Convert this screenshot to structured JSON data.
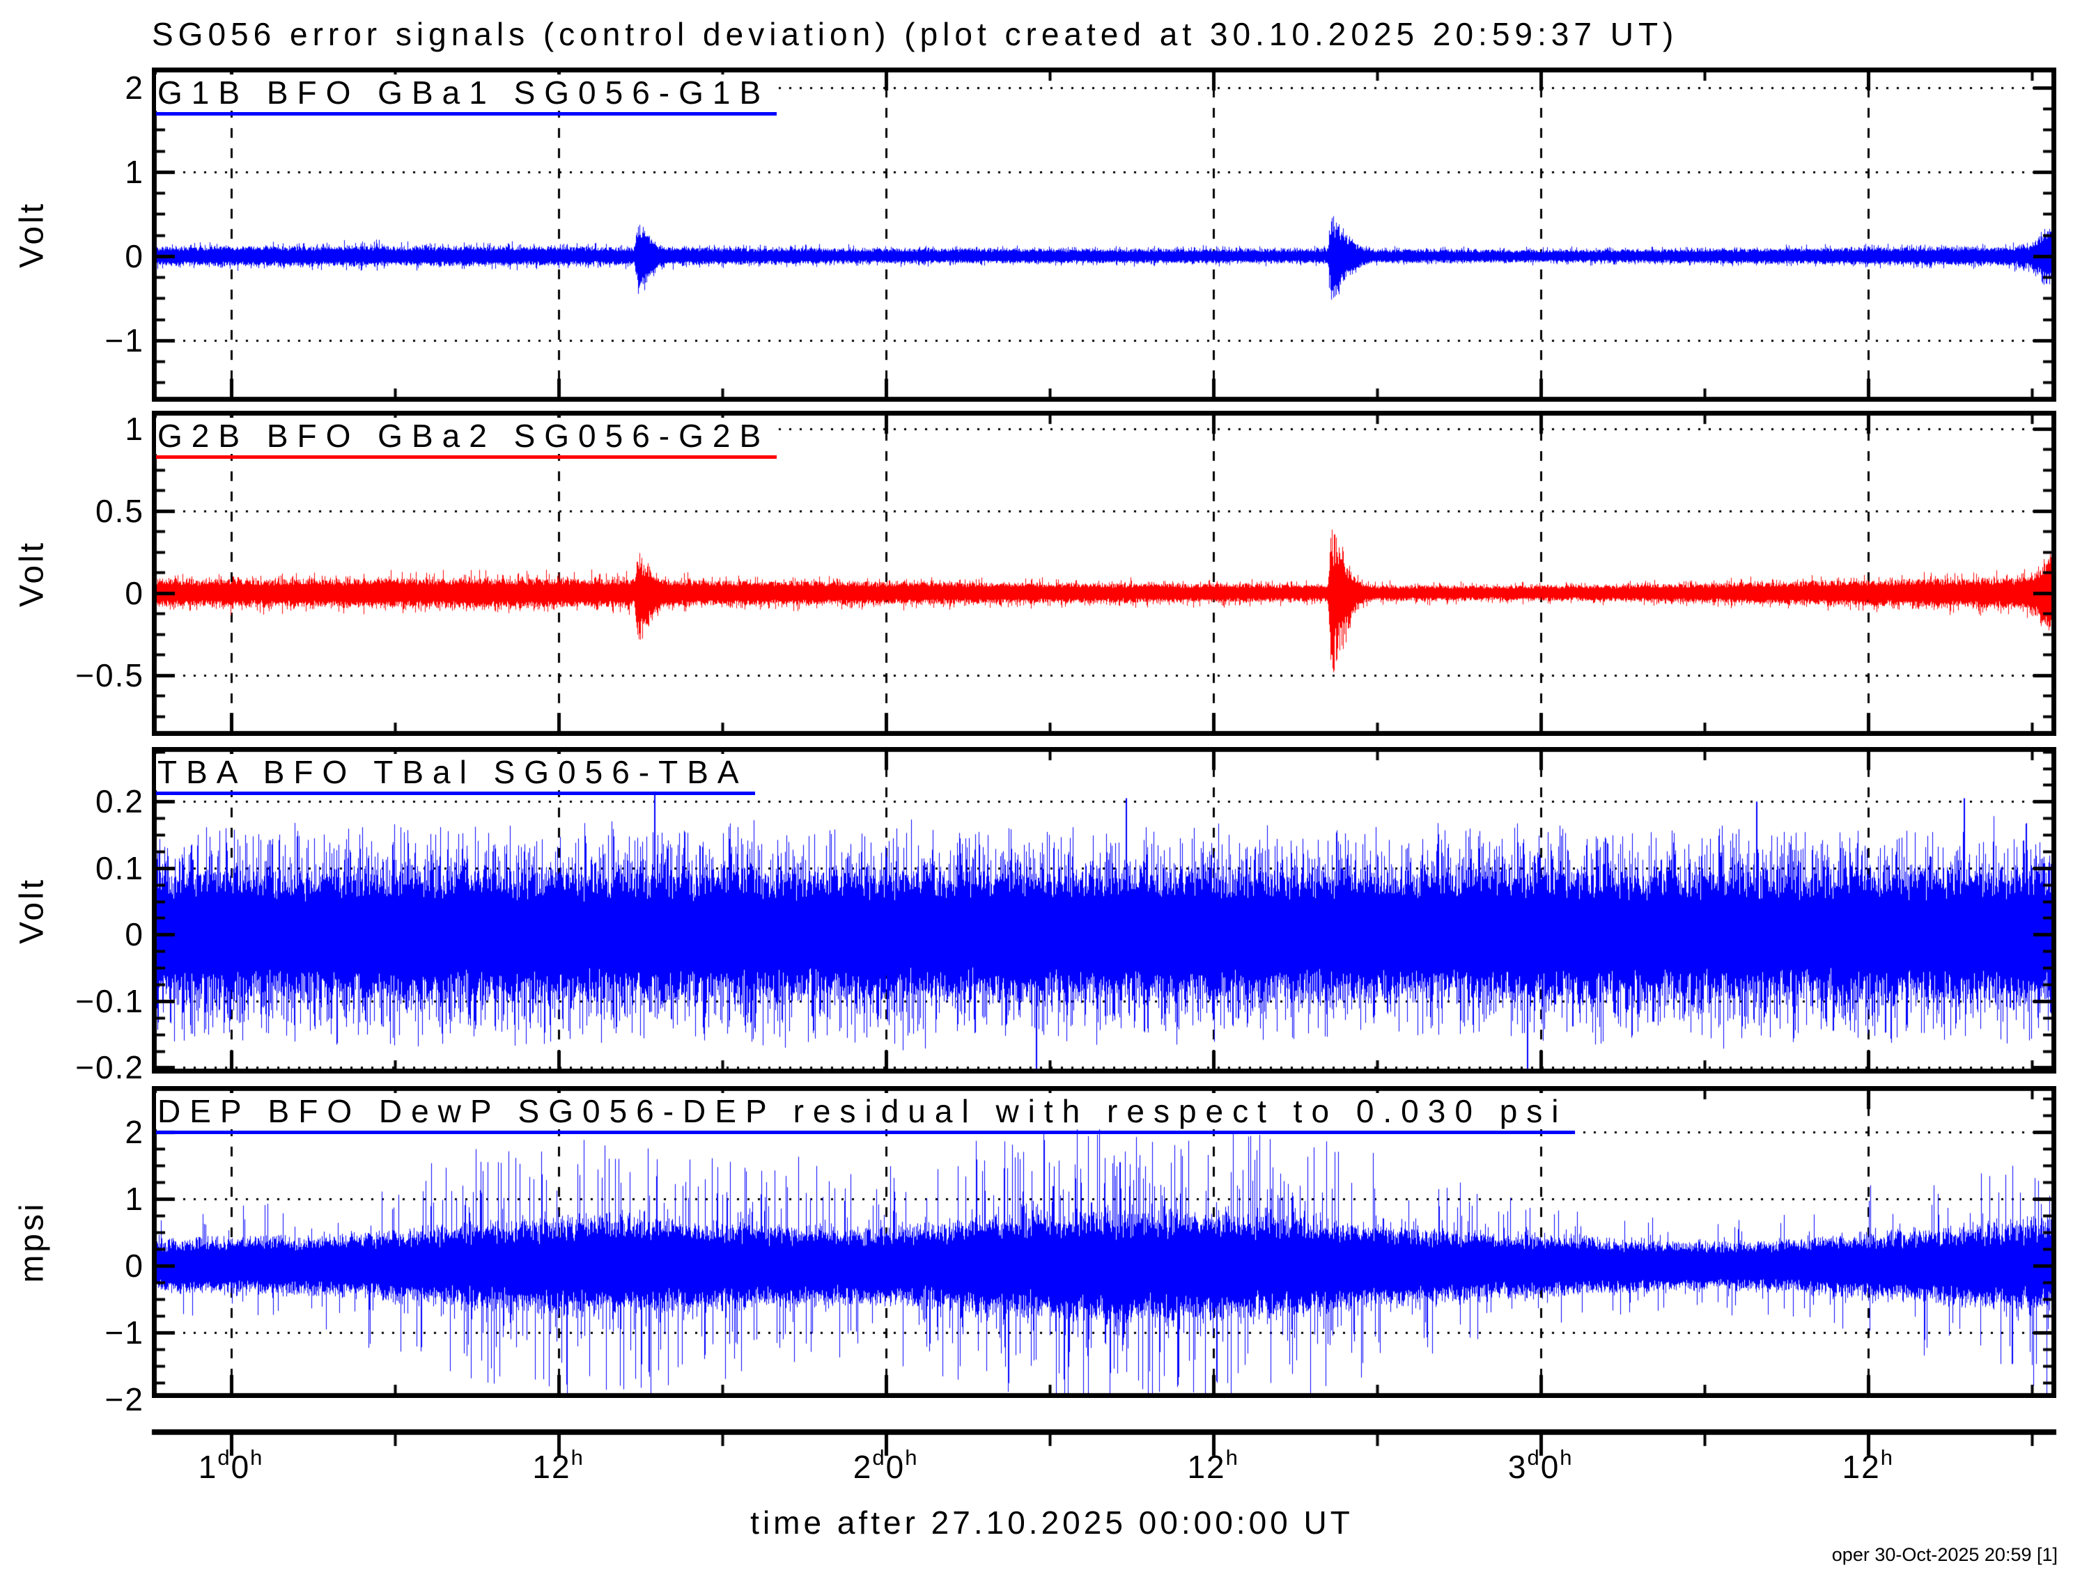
{
  "title": "SG056 error signals (control deviation) (plot created at 30.10.2025 20:59:37 UT)",
  "credit": "oper 30-Oct-2025 20:59 [1]",
  "x_axis": {
    "label": "time after 27.10.2025 00:00:00 UT",
    "units": "days/hours after 27.10.2025 00:00:00 UT",
    "start_hours": 21.1,
    "end_hours": 90.9,
    "major_ticks": [
      {
        "hours": 24,
        "label": "1^d0^h"
      },
      {
        "hours": 36,
        "label": "12^h"
      },
      {
        "hours": 48,
        "label": "2^d0^h"
      },
      {
        "hours": 60,
        "label": "12^h"
      },
      {
        "hours": 72,
        "label": "3^d0^h"
      },
      {
        "hours": 84,
        "label": "12^h"
      }
    ],
    "minor_step_hours": 6,
    "grid": "dashed vertical at major ticks"
  },
  "chart_data": [
    {
      "type": "line",
      "title": "G1B BFO GBa1 SG056-G1B",
      "series_name": "SG056-G1B error signal",
      "ylabel": "Volt",
      "color": "#0000ff",
      "ylim": [
        -1.73,
        2.24
      ],
      "yticks": [
        {
          "v": 2,
          "label": "2"
        },
        {
          "v": 1,
          "label": "1"
        },
        {
          "v": 0,
          "label": "0"
        },
        {
          "v": -1,
          "label": "−1"
        }
      ],
      "y_minor_step": 0.25,
      "grid": "dotted horizontal at major ticks",
      "signal": {
        "kind": "noise-band around 0 V",
        "seed": 101,
        "envelope": [
          [
            21.1,
            0.105,
            0.19,
            0.5
          ],
          [
            26,
            0.11,
            0.2,
            0.5
          ],
          [
            30,
            0.11,
            0.21,
            0.5
          ],
          [
            34,
            0.105,
            0.2,
            0.5
          ],
          [
            38,
            0.1,
            0.18,
            0.5
          ],
          [
            42,
            0.095,
            0.17,
            0.5
          ],
          [
            46,
            0.085,
            0.15,
            0.5
          ],
          [
            50,
            0.082,
            0.14,
            0.5
          ],
          [
            54,
            0.08,
            0.135,
            0.5
          ],
          [
            58,
            0.08,
            0.135,
            0.5
          ],
          [
            62,
            0.08,
            0.14,
            0.5
          ],
          [
            66,
            0.078,
            0.13,
            0.5
          ],
          [
            70,
            0.072,
            0.12,
            0.5
          ],
          [
            74,
            0.072,
            0.12,
            0.5
          ],
          [
            78,
            0.08,
            0.14,
            0.5
          ],
          [
            82,
            0.09,
            0.16,
            0.5
          ],
          [
            86,
            0.1,
            0.18,
            0.5
          ],
          [
            89,
            0.105,
            0.19,
            0.5
          ],
          [
            90.9,
            0.13,
            0.24,
            0.6
          ]
        ],
        "spike_pow": 3.2,
        "bursts": [
          {
            "t": 38.9,
            "up": 0.3,
            "down": 0.4,
            "attack": 0.06,
            "decay": 0.55
          },
          {
            "t": 64.3,
            "up": 0.42,
            "down": 0.5,
            "attack": 0.06,
            "decay": 0.75
          },
          {
            "t": 90.7,
            "up": 0.25,
            "down": 0.25,
            "attack": 0.5,
            "decay": 0.4
          }
        ],
        "outliers": []
      }
    },
    {
      "type": "line",
      "title": "G2B BFO GBa2 SG056-G2B",
      "series_name": "SG056-G2B error signal",
      "ylabel": "Volt",
      "color": "#ff0000",
      "ylim": [
        -0.87,
        1.11
      ],
      "yticks": [
        {
          "v": 1,
          "label": "1"
        },
        {
          "v": 0.5,
          "label": "0.5"
        },
        {
          "v": 0,
          "label": "0"
        },
        {
          "v": -0.5,
          "label": "−0.5"
        }
      ],
      "y_minor_step": 0.125,
      "grid": "dotted horizontal at major ticks",
      "signal": {
        "kind": "noise-band around 0 V",
        "seed": 202,
        "envelope": [
          [
            21.1,
            0.075,
            0.135,
            0.5
          ],
          [
            26,
            0.08,
            0.145,
            0.5
          ],
          [
            30,
            0.085,
            0.15,
            0.5
          ],
          [
            34,
            0.085,
            0.155,
            0.5
          ],
          [
            38,
            0.08,
            0.15,
            0.5
          ],
          [
            42,
            0.072,
            0.13,
            0.5
          ],
          [
            46,
            0.068,
            0.12,
            0.5
          ],
          [
            50,
            0.062,
            0.11,
            0.5
          ],
          [
            54,
            0.058,
            0.105,
            0.5
          ],
          [
            58,
            0.055,
            0.1,
            0.5
          ],
          [
            62,
            0.052,
            0.095,
            0.5
          ],
          [
            66,
            0.048,
            0.085,
            0.5
          ],
          [
            70,
            0.042,
            0.075,
            0.5
          ],
          [
            74,
            0.045,
            0.08,
            0.5
          ],
          [
            78,
            0.055,
            0.1,
            0.5
          ],
          [
            82,
            0.068,
            0.12,
            0.5
          ],
          [
            86,
            0.078,
            0.14,
            0.5
          ],
          [
            89,
            0.085,
            0.15,
            0.5
          ],
          [
            90.9,
            0.1,
            0.18,
            0.6
          ]
        ],
        "spike_pow": 3.2,
        "bursts": [
          {
            "t": 38.9,
            "up": 0.16,
            "down": 0.28,
            "attack": 0.06,
            "decay": 0.5
          },
          {
            "t": 64.3,
            "up": 0.35,
            "down": 0.46,
            "attack": 0.05,
            "decay": 0.7
          },
          {
            "t": 90.7,
            "up": 0.15,
            "down": 0.15,
            "attack": 0.5,
            "decay": 0.4
          }
        ],
        "outliers": []
      }
    },
    {
      "type": "line",
      "title": "TBA BFO TBal SG056-TBA",
      "series_name": "SG056-TBA error signal",
      "ylabel": "Volt",
      "color": "#0000ff",
      "ylim": [
        -0.209,
        0.282
      ],
      "yticks": [
        {
          "v": 0.2,
          "label": "0.2"
        },
        {
          "v": 0.1,
          "label": "0.1"
        },
        {
          "v": 0,
          "label": "0"
        },
        {
          "v": -0.1,
          "label": "−0.1"
        },
        {
          "v": -0.2,
          "label": "−0.2"
        }
      ],
      "y_minor_step": 0.025,
      "grid": "dotted horizontal at major ticks",
      "signal": {
        "kind": "dense stationary noise-band around 0 V",
        "seed": 303,
        "envelope": [
          [
            21.1,
            0.086,
            0.18,
            0.97
          ],
          [
            40,
            0.088,
            0.182,
            0.97
          ],
          [
            60,
            0.086,
            0.18,
            0.97
          ],
          [
            80,
            0.088,
            0.182,
            0.97
          ],
          [
            90.9,
            0.088,
            0.182,
            0.97
          ]
        ],
        "spike_pow": 2.8,
        "bursts": [],
        "outliers": [
          {
            "t": 39.5,
            "v": 0.215
          },
          {
            "t": 53.5,
            "v": -0.225
          },
          {
            "t": 56.8,
            "v": 0.205
          },
          {
            "t": 71.5,
            "v": -0.235
          },
          {
            "t": 79.9,
            "v": 0.2
          },
          {
            "t": 87.5,
            "v": 0.205
          }
        ]
      }
    },
    {
      "type": "line",
      "title": "DEP BFO DewP SG056-DEP residual with respect to 0.030 psi",
      "series_name": "SG056-DEP residual",
      "ylabel": "mpsi",
      "color": "#0000ff",
      "ylim": [
        -1.98,
        2.69
      ],
      "yticks": [
        {
          "v": 2,
          "label": "2"
        },
        {
          "v": 1,
          "label": "1"
        },
        {
          "v": 0,
          "label": "0"
        },
        {
          "v": -1,
          "label": "−1"
        },
        {
          "v": -2,
          "label": "−2"
        }
      ],
      "y_minor_step": 0.25,
      "grid": "dotted horizontal at major ticks",
      "signal": {
        "kind": "spiky noise-band around 0 mpsi, amplitude grows mid-record",
        "seed": 404,
        "envelope": [
          [
            21.1,
            0.35,
            0.95,
            0.1
          ],
          [
            25,
            0.38,
            1.0,
            0.1
          ],
          [
            28,
            0.4,
            1.2,
            0.12
          ],
          [
            31,
            0.45,
            1.7,
            0.18
          ],
          [
            33,
            0.5,
            2.1,
            0.25
          ],
          [
            36,
            0.55,
            2.3,
            0.28
          ],
          [
            39,
            0.58,
            2.3,
            0.3
          ],
          [
            41,
            0.55,
            2.0,
            0.26
          ],
          [
            43,
            0.52,
            1.8,
            0.22
          ],
          [
            45,
            0.5,
            1.7,
            0.2
          ],
          [
            47,
            0.5,
            1.6,
            0.18
          ],
          [
            49,
            0.52,
            1.7,
            0.18
          ],
          [
            51,
            0.56,
            2.1,
            0.24
          ],
          [
            53,
            0.62,
            2.4,
            0.28
          ],
          [
            55,
            0.66,
            2.5,
            0.3
          ],
          [
            57,
            0.68,
            2.5,
            0.32
          ],
          [
            59,
            0.68,
            2.4,
            0.32
          ],
          [
            61,
            0.64,
            2.4,
            0.3
          ],
          [
            63,
            0.6,
            2.3,
            0.28
          ],
          [
            65,
            0.56,
            2.0,
            0.24
          ],
          [
            67,
            0.5,
            1.7,
            0.2
          ],
          [
            69,
            0.46,
            1.4,
            0.16
          ],
          [
            71,
            0.42,
            1.2,
            0.14
          ],
          [
            73,
            0.4,
            1.0,
            0.12
          ],
          [
            75,
            0.36,
            0.9,
            0.1
          ],
          [
            77,
            0.34,
            0.8,
            0.09
          ],
          [
            79,
            0.33,
            0.8,
            0.09
          ],
          [
            81,
            0.35,
            0.9,
            0.1
          ],
          [
            83,
            0.4,
            1.1,
            0.12
          ],
          [
            85,
            0.44,
            1.4,
            0.15
          ],
          [
            87,
            0.48,
            1.7,
            0.18
          ],
          [
            89,
            0.52,
            2.0,
            0.22
          ],
          [
            90.9,
            0.56,
            2.3,
            0.26
          ]
        ],
        "spike_pow": 1.8,
        "bursts": [],
        "outliers": []
      }
    }
  ]
}
